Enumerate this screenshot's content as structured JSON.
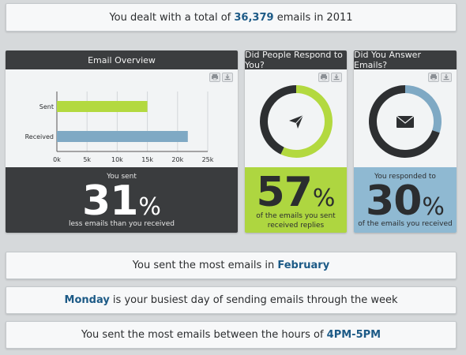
{
  "banner": {
    "prefix": "You dealt with a total of ",
    "value": "36,379",
    "suffix": " emails in 2011"
  },
  "overview": {
    "title": "Email Overview",
    "stat_label": "You sent",
    "stat_value": "31",
    "stat_unit": "%",
    "stat_caption": "less emails than you received"
  },
  "respond": {
    "title": "Did People Respond to You?",
    "stat_value": "57",
    "stat_unit": "%",
    "caption_line1": "of the emails you sent",
    "caption_line2": "received replies",
    "icon": "paper-plane-icon"
  },
  "answer": {
    "title": "Did You Answer Emails?",
    "stat_label": "You responded to",
    "stat_value": "30",
    "stat_unit": "%",
    "stat_caption": "of the emails you received",
    "icon": "envelope-icon"
  },
  "fact1": {
    "prefix": "You sent the most emails in ",
    "value": "February",
    "suffix": ""
  },
  "fact2": {
    "prefix": "",
    "value": "Monday",
    "suffix": " is your busiest day of sending emails through the week"
  },
  "fact3": {
    "prefix": "You sent the most emails between the hours of ",
    "value": "4PM-5PM",
    "suffix": ""
  },
  "colors": {
    "sent": "#b3d93f",
    "received": "#7fa9c4",
    "dark": "#3a3c3e",
    "green": "#aed640",
    "blue": "#8fb9d2",
    "donut_dark": "#2d2f31"
  },
  "chart_data": [
    {
      "type": "bar",
      "orientation": "horizontal",
      "categories": [
        "Sent",
        "Received"
      ],
      "values": [
        15000,
        21700
      ],
      "ticks": [
        "0k",
        "5k",
        "10k",
        "15k",
        "20k",
        "25k"
      ],
      "xlim": [
        0,
        25000
      ],
      "grid": true,
      "series_colors": [
        "#b3d93f",
        "#7fa9c4"
      ]
    },
    {
      "type": "pie",
      "variant": "donut",
      "values": [
        57,
        43
      ],
      "colors": [
        "#b3d93f",
        "#2d2f31"
      ]
    },
    {
      "type": "pie",
      "variant": "donut",
      "values": [
        30,
        70
      ],
      "colors": [
        "#7fa9c4",
        "#2d2f31"
      ]
    }
  ]
}
